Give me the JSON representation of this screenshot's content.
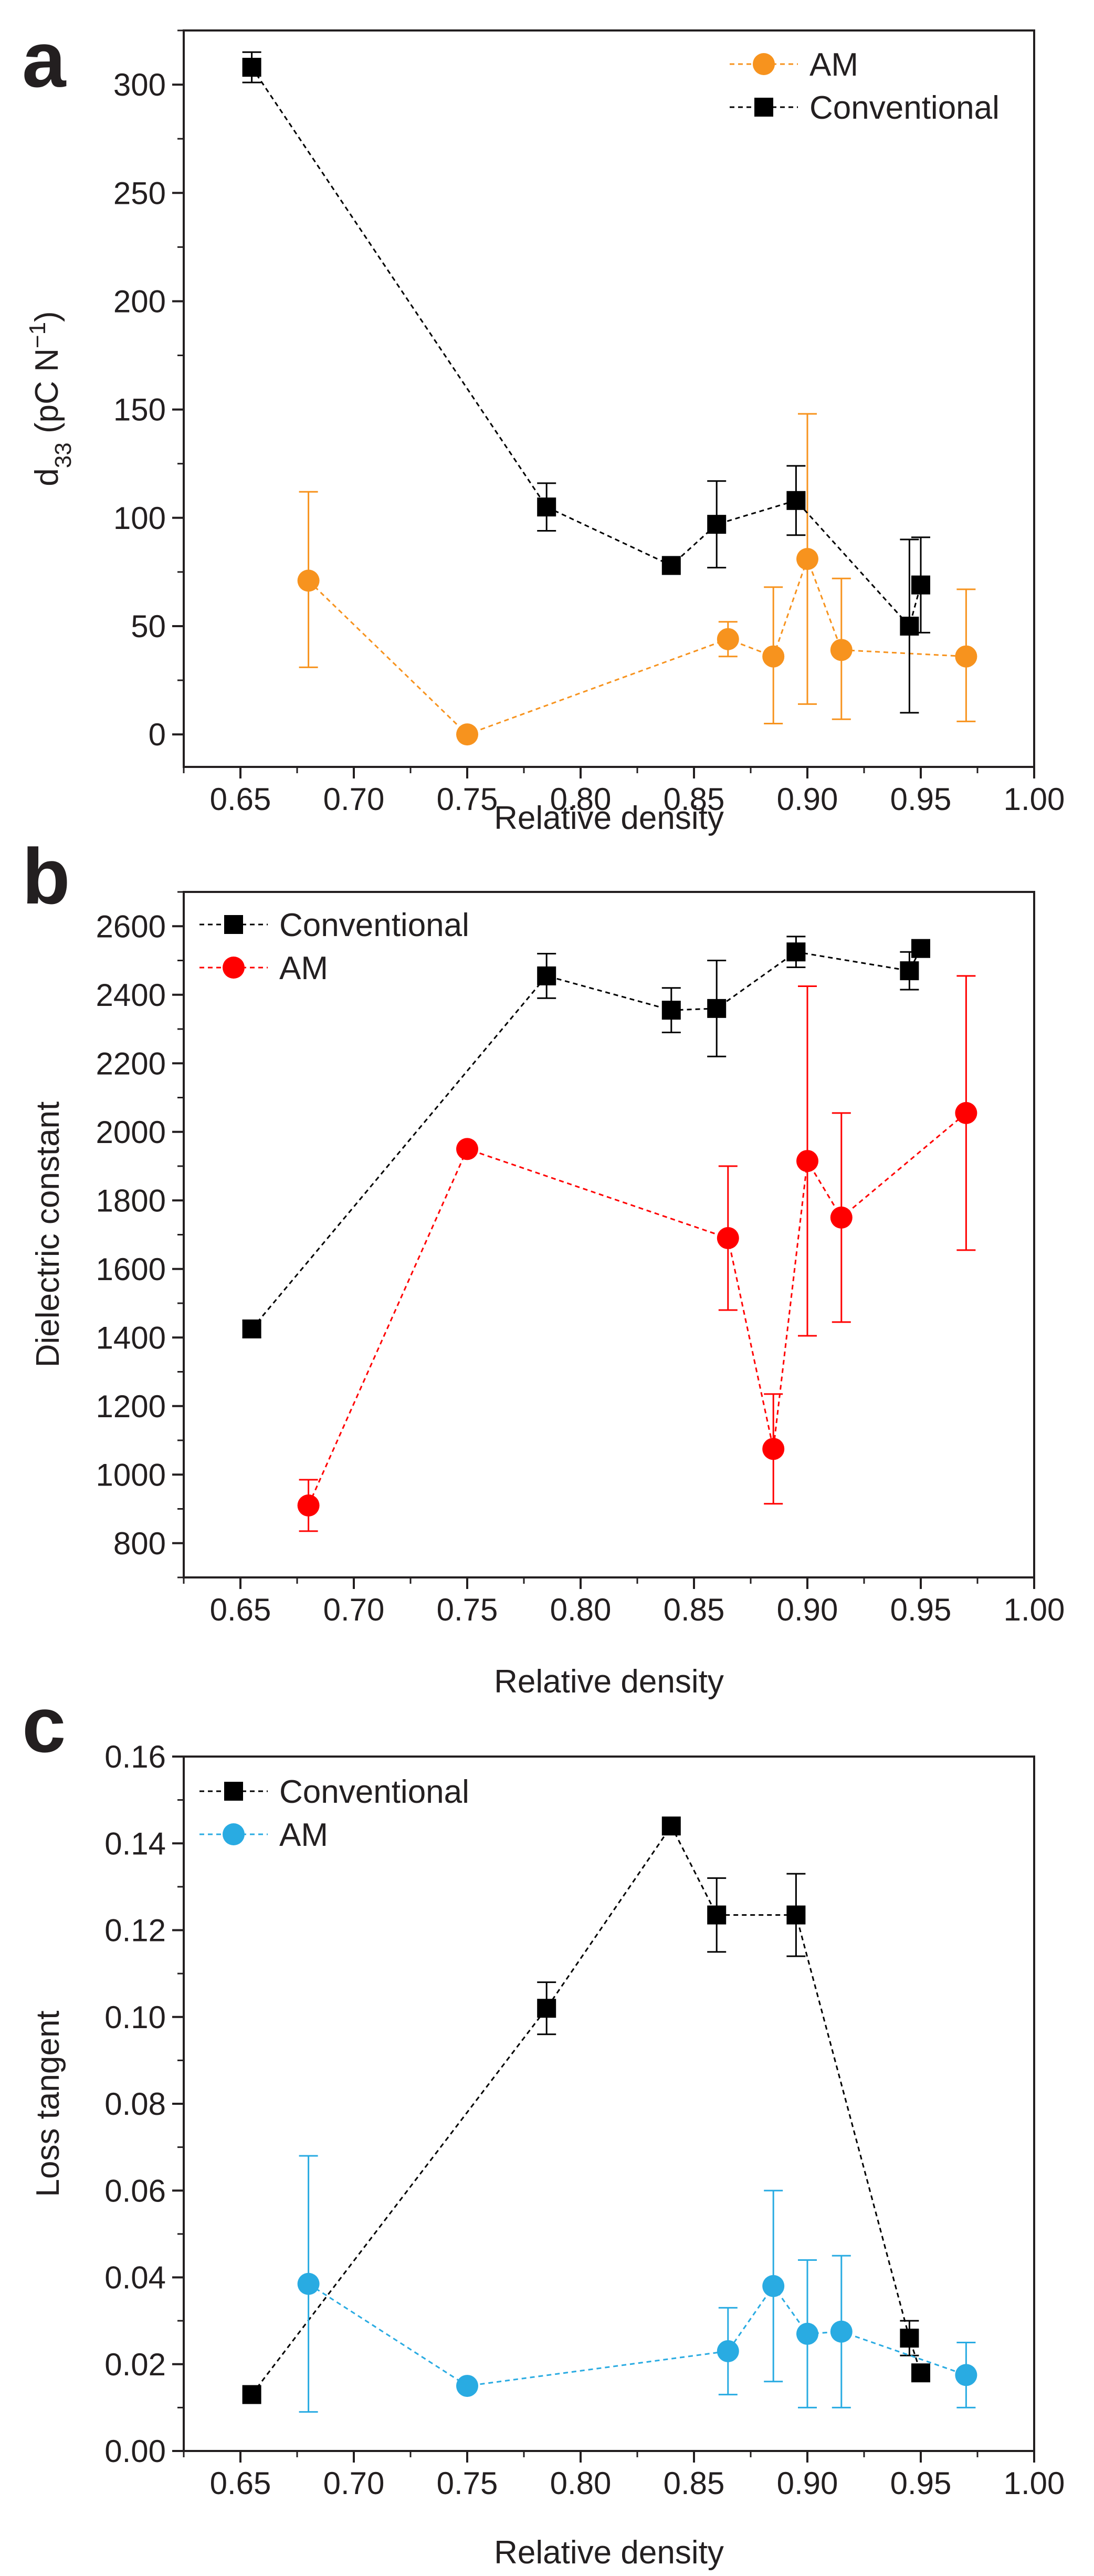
{
  "chart_data": [
    {
      "type": "scatter",
      "panel": "a",
      "xlabel": "Relative density",
      "ylabel": "d33 (pC N⁻¹)",
      "ylabel_parts": {
        "main": "d",
        "sub": "33",
        "unit_open": " (pC N",
        "sup": "−1",
        "unit_close": ")"
      },
      "xlim": [
        0.625,
        1.0
      ],
      "ylim": [
        -15,
        325
      ],
      "xticks": [
        0.65,
        0.7,
        0.75,
        0.8,
        0.85,
        0.9,
        0.95,
        1.0
      ],
      "xtick_labels": [
        "0.65",
        "0.70",
        "0.75",
        "0.80",
        "0.85",
        "0.90",
        "0.95",
        "1.00"
      ],
      "yticks": [
        0,
        50,
        100,
        150,
        200,
        250,
        300
      ],
      "ytick_labels": [
        "0",
        "50",
        "100",
        "150",
        "200",
        "250",
        "300"
      ],
      "legend_position": "top-right",
      "series": [
        {
          "name": "AM",
          "color": "#f7931e",
          "marker": "circle",
          "x": [
            0.68,
            0.75,
            0.865,
            0.885,
            0.9,
            0.915,
            0.97
          ],
          "y": [
            71,
            0,
            44,
            36,
            81,
            39,
            36
          ],
          "err_low": [
            40,
            0,
            8,
            31,
            67,
            32,
            30
          ],
          "err_high": [
            41,
            0,
            8,
            32,
            67,
            33,
            31
          ]
        },
        {
          "name": "Conventional",
          "color": "#000000",
          "marker": "square",
          "x": [
            0.655,
            0.785,
            0.84,
            0.86,
            0.895,
            0.945,
            0.95
          ],
          "y": [
            308,
            105,
            78,
            97,
            108,
            50,
            69
          ],
          "err_low": [
            7,
            11,
            0,
            20,
            16,
            40,
            22
          ],
          "err_high": [
            7,
            11,
            0,
            20,
            16,
            40,
            22
          ]
        }
      ]
    },
    {
      "type": "scatter",
      "panel": "b",
      "xlabel": "Relative density",
      "ylabel": "Dielectric constant",
      "xlim": [
        0.625,
        1.0
      ],
      "ylim": [
        700,
        2700
      ],
      "xticks": [
        0.65,
        0.7,
        0.75,
        0.8,
        0.85,
        0.9,
        0.95,
        1.0
      ],
      "xtick_labels": [
        "0.65",
        "0.70",
        "0.75",
        "0.80",
        "0.85",
        "0.90",
        "0.95",
        "1.00"
      ],
      "yticks": [
        800,
        1000,
        1200,
        1400,
        1600,
        1800,
        2000,
        2200,
        2400,
        2600
      ],
      "ytick_labels": [
        "800",
        "1000",
        "1200",
        "1400",
        "1600",
        "1800",
        "2000",
        "2200",
        "2400",
        "2600"
      ],
      "legend_position": "top-left",
      "series": [
        {
          "name": "Conventional",
          "color": "#000000",
          "marker": "square",
          "x": [
            0.655,
            0.785,
            0.84,
            0.86,
            0.895,
            0.945,
            0.95
          ],
          "y": [
            1425,
            2455,
            2355,
            2360,
            2525,
            2470,
            2535
          ],
          "err_low": [
            25,
            65,
            65,
            140,
            45,
            55,
            0
          ],
          "err_high": [
            25,
            65,
            65,
            140,
            45,
            55,
            0
          ]
        },
        {
          "name": "AM",
          "color": "#ff0000",
          "marker": "circle",
          "x": [
            0.68,
            0.75,
            0.865,
            0.885,
            0.9,
            0.915,
            0.97
          ],
          "y": [
            910,
            1950,
            1690,
            1075,
            1915,
            1750,
            2055
          ],
          "err_low": [
            75,
            0,
            210,
            160,
            510,
            305,
            400
          ],
          "err_high": [
            75,
            0,
            210,
            160,
            510,
            305,
            400
          ]
        }
      ]
    },
    {
      "type": "scatter",
      "panel": "c",
      "xlabel": "Relative density",
      "ylabel": "Loss tangent",
      "xlim": [
        0.625,
        1.0
      ],
      "ylim": [
        0.0,
        0.16
      ],
      "xticks": [
        0.65,
        0.7,
        0.75,
        0.8,
        0.85,
        0.9,
        0.95,
        1.0
      ],
      "xtick_labels": [
        "0.65",
        "0.70",
        "0.75",
        "0.80",
        "0.85",
        "0.90",
        "0.95",
        "1.00"
      ],
      "yticks": [
        0.0,
        0.02,
        0.04,
        0.06,
        0.08,
        0.1,
        0.12,
        0.14,
        0.16
      ],
      "ytick_labels": [
        "0.00",
        "0.02",
        "0.04",
        "0.06",
        "0.08",
        "0.10",
        "0.12",
        "0.14",
        "0.16"
      ],
      "legend_position": "top-left",
      "series": [
        {
          "name": "Conventional",
          "color": "#000000",
          "marker": "square",
          "x": [
            0.655,
            0.785,
            0.84,
            0.86,
            0.895,
            0.945,
            0.95
          ],
          "y": [
            0.013,
            0.102,
            0.144,
            0.1235,
            0.1235,
            0.026,
            0.018
          ],
          "err_low": [
            0,
            0.006,
            0,
            0.0085,
            0.0095,
            0.004,
            0
          ],
          "err_high": [
            0,
            0.006,
            0,
            0.0085,
            0.0095,
            0.004,
            0
          ]
        },
        {
          "name": "AM",
          "color": "#29abe2",
          "marker": "circle",
          "x": [
            0.68,
            0.75,
            0.865,
            0.885,
            0.9,
            0.915,
            0.97
          ],
          "y": [
            0.0385,
            0.015,
            0.023,
            0.038,
            0.027,
            0.0275,
            0.0175
          ],
          "err_low": [
            0.0295,
            0,
            0.01,
            0.022,
            0.017,
            0.0175,
            0.0075
          ],
          "err_high": [
            0.0295,
            0,
            0.01,
            0.022,
            0.017,
            0.0175,
            0.0075
          ]
        }
      ]
    }
  ]
}
